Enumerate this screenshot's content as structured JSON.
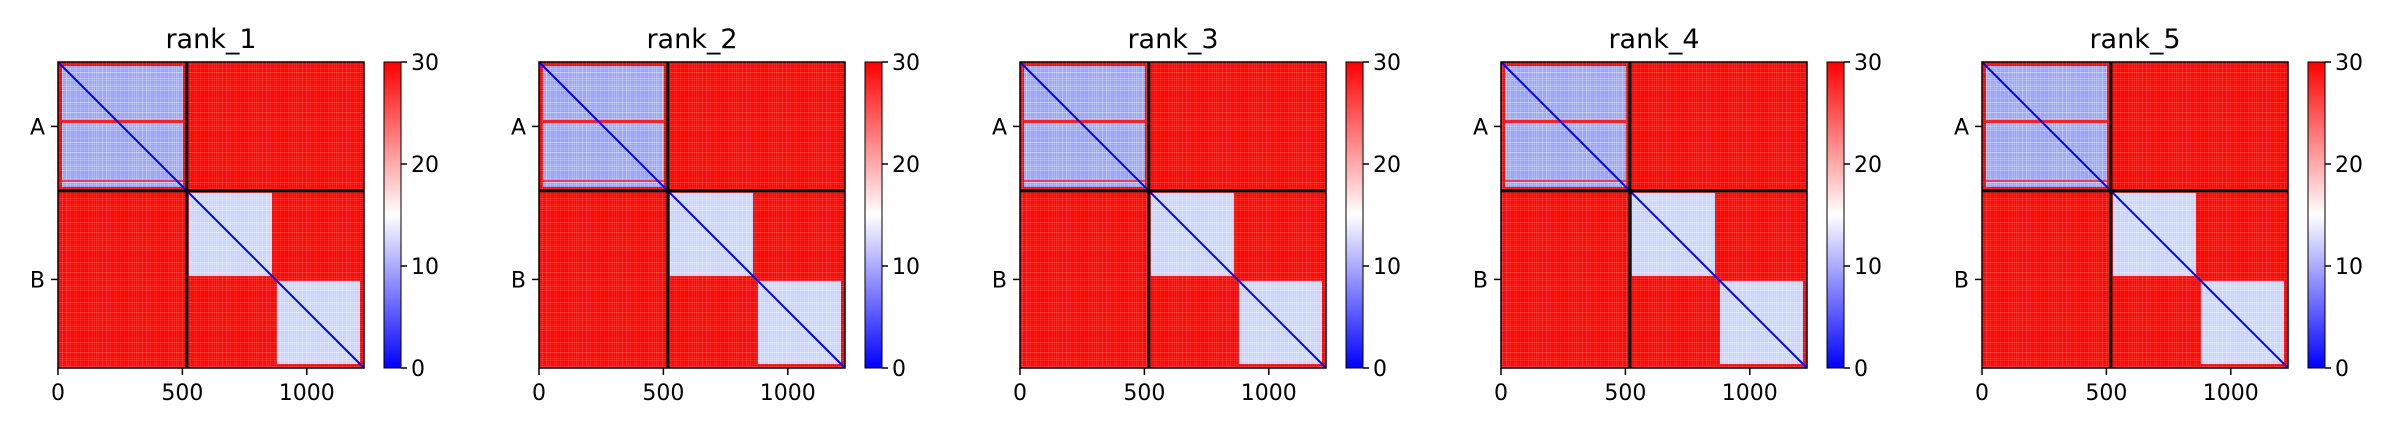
{
  "figure": {
    "panel_count": 5
  },
  "chart_data": [
    {
      "type": "heatmap",
      "title": "rank_1",
      "xlabel": "",
      "ylabel": "",
      "x_ticks": [
        0,
        500,
        1000
      ],
      "x_tick_labels": [
        "0",
        "500",
        "1000"
      ],
      "y_tick_labels": [
        "A",
        "B"
      ],
      "xlim": [
        0,
        1230
      ],
      "ylim": [
        0,
        1230
      ],
      "chain_boundaries": [
        518
      ],
      "colorbar": {
        "min": 0,
        "max": 30,
        "ticks": [
          0,
          10,
          20,
          30
        ],
        "tick_labels": [
          "0",
          "10",
          "20",
          "30"
        ],
        "colormap": "bwr",
        "colors": {
          "low": "#0000ff",
          "mid": "#ffffff",
          "high": "#ff0000"
        }
      },
      "blocks": [
        {
          "chain": "A",
          "start": 0,
          "end": 518,
          "pattern": "low error within chain A"
        },
        {
          "chain": "B",
          "start": 518,
          "end": 1230,
          "pattern": "low error within chain B domains"
        }
      ],
      "grid": false
    },
    {
      "type": "heatmap",
      "title": "rank_2",
      "xlabel": "",
      "ylabel": "",
      "x_ticks": [
        0,
        500,
        1000
      ],
      "x_tick_labels": [
        "0",
        "500",
        "1000"
      ],
      "y_tick_labels": [
        "A",
        "B"
      ],
      "xlim": [
        0,
        1230
      ],
      "ylim": [
        0,
        1230
      ],
      "chain_boundaries": [
        518
      ],
      "colorbar": {
        "min": 0,
        "max": 30,
        "ticks": [
          0,
          10,
          20,
          30
        ],
        "tick_labels": [
          "0",
          "10",
          "20",
          "30"
        ],
        "colormap": "bwr",
        "colors": {
          "low": "#0000ff",
          "mid": "#ffffff",
          "high": "#ff0000"
        }
      },
      "blocks": [
        {
          "chain": "A",
          "start": 0,
          "end": 518,
          "pattern": "low error within chain A"
        },
        {
          "chain": "B",
          "start": 518,
          "end": 1230,
          "pattern": "low error within chain B domains"
        }
      ],
      "grid": false
    },
    {
      "type": "heatmap",
      "title": "rank_3",
      "xlabel": "",
      "ylabel": "",
      "x_ticks": [
        0,
        500,
        1000
      ],
      "x_tick_labels": [
        "0",
        "500",
        "1000"
      ],
      "y_tick_labels": [
        "A",
        "B"
      ],
      "xlim": [
        0,
        1230
      ],
      "ylim": [
        0,
        1230
      ],
      "chain_boundaries": [
        518
      ],
      "colorbar": {
        "min": 0,
        "max": 30,
        "ticks": [
          0,
          10,
          20,
          30
        ],
        "tick_labels": [
          "0",
          "10",
          "20",
          "30"
        ],
        "colormap": "bwr",
        "colors": {
          "low": "#0000ff",
          "mid": "#ffffff",
          "high": "#ff0000"
        }
      },
      "blocks": [
        {
          "chain": "A",
          "start": 0,
          "end": 518,
          "pattern": "low error within chain A"
        },
        {
          "chain": "B",
          "start": 518,
          "end": 1230,
          "pattern": "low error within chain B domains"
        }
      ],
      "grid": false
    },
    {
      "type": "heatmap",
      "title": "rank_4",
      "xlabel": "",
      "ylabel": "",
      "x_ticks": [
        0,
        500,
        1000
      ],
      "x_tick_labels": [
        "0",
        "500",
        "1000"
      ],
      "y_tick_labels": [
        "A",
        "B"
      ],
      "xlim": [
        0,
        1230
      ],
      "ylim": [
        0,
        1230
      ],
      "chain_boundaries": [
        518
      ],
      "colorbar": {
        "min": 0,
        "max": 30,
        "ticks": [
          0,
          10,
          20,
          30
        ],
        "tick_labels": [
          "0",
          "10",
          "20",
          "30"
        ],
        "colormap": "bwr",
        "colors": {
          "low": "#0000ff",
          "mid": "#ffffff",
          "high": "#ff0000"
        }
      },
      "blocks": [
        {
          "chain": "A",
          "start": 0,
          "end": 518,
          "pattern": "low error within chain A"
        },
        {
          "chain": "B",
          "start": 518,
          "end": 1230,
          "pattern": "low error within chain B domains"
        }
      ],
      "grid": false
    },
    {
      "type": "heatmap",
      "title": "rank_5",
      "xlabel": "",
      "ylabel": "",
      "x_ticks": [
        0,
        500,
        1000
      ],
      "x_tick_labels": [
        "0",
        "500",
        "1000"
      ],
      "y_tick_labels": [
        "A",
        "B"
      ],
      "xlim": [
        0,
        1230
      ],
      "ylim": [
        0,
        1230
      ],
      "chain_boundaries": [
        518
      ],
      "colorbar": {
        "min": 0,
        "max": 30,
        "ticks": [
          0,
          10,
          20,
          30
        ],
        "tick_labels": [
          "0",
          "10",
          "20",
          "30"
        ],
        "colormap": "bwr",
        "colors": {
          "low": "#0000ff",
          "mid": "#ffffff",
          "high": "#ff0000"
        }
      },
      "blocks": [
        {
          "chain": "A",
          "start": 0,
          "end": 518,
          "pattern": "low error within chain A"
        },
        {
          "chain": "B",
          "start": 518,
          "end": 1230,
          "pattern": "low error within chain B domains"
        }
      ],
      "grid": false
    }
  ]
}
